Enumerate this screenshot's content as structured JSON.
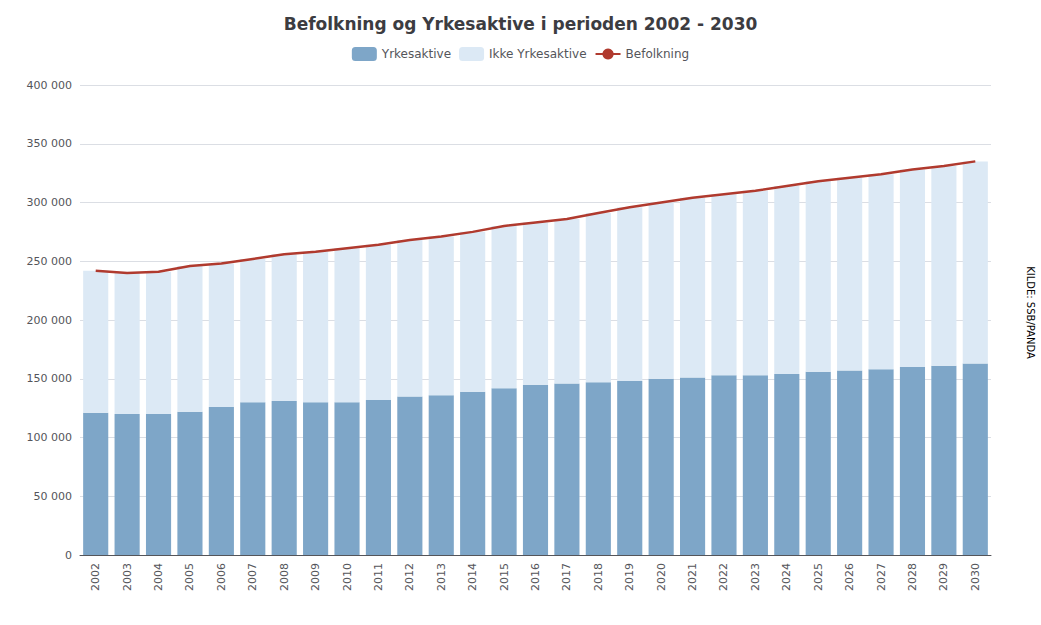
{
  "chart_data": {
    "type": "bar",
    "title": "Befolkning og Yrkesaktive i perioden 2002 - 2030",
    "categories": [
      "2002",
      "2003",
      "2004",
      "2005",
      "2006",
      "2007",
      "2008",
      "2009",
      "2010",
      "2011",
      "2012",
      "2013",
      "2014",
      "2015",
      "2016",
      "2017",
      "2018",
      "2019",
      "2020",
      "2021",
      "2022",
      "2023",
      "2024",
      "2025",
      "2026",
      "2027",
      "2028",
      "2029",
      "2030"
    ],
    "series": [
      {
        "name": "Yrkesaktive",
        "type": "bar",
        "color": "#7ea6c8",
        "values": [
          121000,
          120000,
          120000,
          122000,
          126000,
          130000,
          131000,
          130000,
          130000,
          132000,
          135000,
          136000,
          139000,
          142000,
          145000,
          146000,
          147000,
          148000,
          150000,
          151000,
          153000,
          153000,
          154000,
          156000,
          157000,
          158000,
          160000,
          161000,
          163000
        ]
      },
      {
        "name": "Ikke Yrkesaktive",
        "type": "bar",
        "color": "#dce9f5",
        "values": [
          121000,
          120000,
          121000,
          124000,
          122000,
          122000,
          125000,
          128000,
          131000,
          132000,
          133000,
          135000,
          136000,
          138000,
          138000,
          140000,
          144000,
          148000,
          150000,
          153000,
          154000,
          157000,
          160000,
          162000,
          164000,
          166000,
          168000,
          170000,
          172000
        ]
      },
      {
        "name": "Befolkning",
        "type": "line",
        "color": "#b03a2e",
        "values": [
          242000,
          240000,
          241000,
          246000,
          248000,
          252000,
          256000,
          258000,
          261000,
          264000,
          268000,
          271000,
          275000,
          280000,
          283000,
          286000,
          291000,
          296000,
          300000,
          304000,
          307000,
          310000,
          314000,
          318000,
          321000,
          324000,
          328000,
          331000,
          335000
        ]
      }
    ],
    "stacked": true,
    "ylim": [
      0,
      400000
    ],
    "yticks": [
      0,
      {
        "value": 50000,
        "label": "50 000"
      },
      {
        "value": 100000,
        "label": "100 000"
      },
      {
        "value": 150000,
        "label": "150 000"
      },
      {
        "value": 200000,
        "label": "200 000"
      },
      {
        "value": 250000,
        "label": "250 000"
      },
      {
        "value": 300000,
        "label": "300 000"
      },
      {
        "value": 350000,
        "label": "350 000"
      },
      {
        "value": 400000,
        "label": "400 000"
      }
    ],
    "grid": true,
    "legend": "top",
    "annotations": [
      "KILDE: SSB/PANDA"
    ]
  }
}
